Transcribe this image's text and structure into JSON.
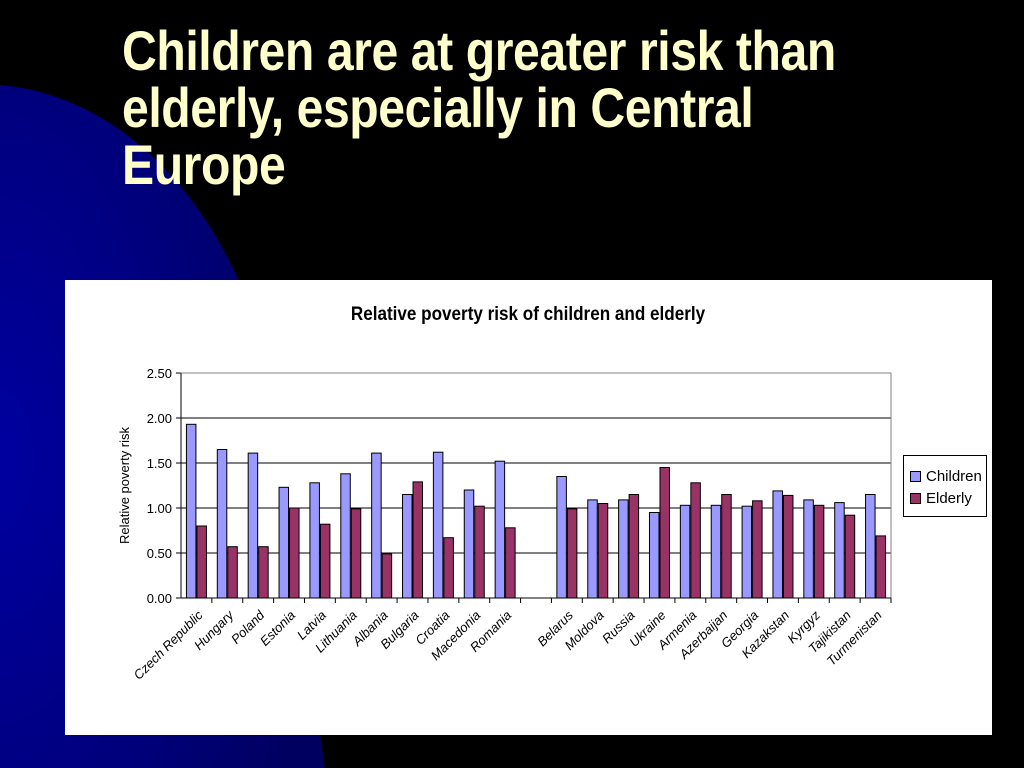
{
  "slide": {
    "title": "Children are at greater risk than elderly, especially in Central Europe"
  },
  "colors": {
    "background": "#000000",
    "decoration": "#0a0a8c",
    "title": "#FFFFCC",
    "children": "#9999FF",
    "elderly": "#993366"
  },
  "chart_data": {
    "type": "bar",
    "title": "Relative poverty risk of children and elderly",
    "xlabel": "",
    "ylabel": "Relative poverty risk",
    "ylim": [
      0,
      2.5
    ],
    "yticks": [
      "0.00",
      "0.50",
      "1.00",
      "1.50",
      "2.00",
      "2.50"
    ],
    "grid": true,
    "legend_position": "right",
    "categories": [
      "Czech Republic",
      "Hungary",
      "Poland",
      "Estonia",
      "Latvia",
      "Lithuania",
      "Albania",
      "Bulgaria",
      "Croatia",
      "Macedonia",
      "Romania",
      "",
      "Belarus",
      "Moldova",
      "Russia",
      "Ukraine",
      "Armenia",
      "Azerbaijan",
      "Georgia",
      "Kazakstan",
      "Kyrgyz",
      "Tajikistan",
      "Turmenistan"
    ],
    "series": [
      {
        "name": "Children",
        "values": [
          1.93,
          1.65,
          1.61,
          1.23,
          1.28,
          1.38,
          1.61,
          1.15,
          1.62,
          1.2,
          1.52,
          null,
          1.35,
          1.09,
          1.09,
          0.95,
          1.03,
          1.03,
          1.02,
          1.19,
          1.09,
          1.06,
          1.15
        ]
      },
      {
        "name": "Elderly",
        "values": [
          0.8,
          0.57,
          0.57,
          1.0,
          0.82,
          0.99,
          0.49,
          1.29,
          0.67,
          1.02,
          0.78,
          null,
          0.99,
          1.05,
          1.15,
          1.45,
          1.28,
          1.15,
          1.08,
          1.14,
          1.03,
          0.92,
          0.69
        ]
      }
    ]
  }
}
